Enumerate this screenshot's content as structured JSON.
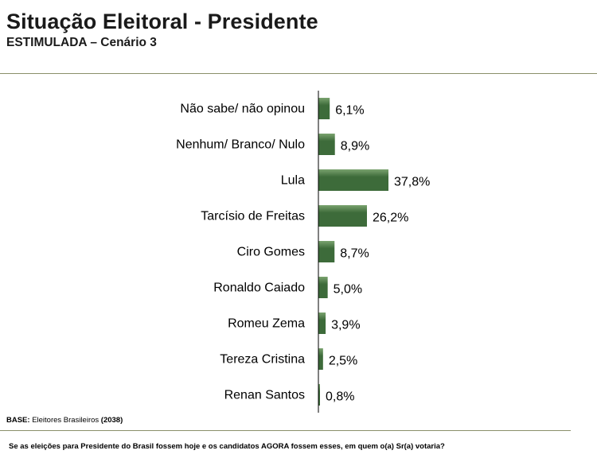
{
  "header": {
    "title": "Situação Eleitoral - Presidente",
    "subtitle": "ESTIMULADA – Cenário 3"
  },
  "chart_data": {
    "type": "bar",
    "orientation": "horizontal",
    "categories": [
      "Não sabe/ não opinou",
      "Nenhum/ Branco/ Nulo",
      "Lula",
      "Tarcísio de Freitas",
      "Ciro Gomes",
      "Ronaldo Caiado",
      "Romeu Zema",
      "Tereza Cristina",
      "Renan Santos"
    ],
    "values": [
      6.1,
      8.9,
      37.8,
      26.2,
      8.7,
      5.0,
      3.9,
      2.5,
      0.8
    ],
    "value_labels": [
      "6,1%",
      "8,9%",
      "37,8%",
      "26,2%",
      "8,7%",
      "5,0%",
      "3,9%",
      "2,5%",
      "0,8%"
    ],
    "unit": "%",
    "xlim": [
      0,
      37.8
    ],
    "bar_color": "#3d6b3a",
    "bar_color_light": "#7aa36f",
    "axis_color": "#000000",
    "title": "",
    "xlabel": "",
    "ylabel": ""
  },
  "footer": {
    "base_label": "BASE:",
    "base_text": "Eleitores Brasileiros",
    "base_count": "(2038)",
    "question": "Se as eleições para Presidente do Brasil fossem hoje e os candidatos AGORA fossem esses, em quem o(a) Sr(a) votaria?"
  }
}
